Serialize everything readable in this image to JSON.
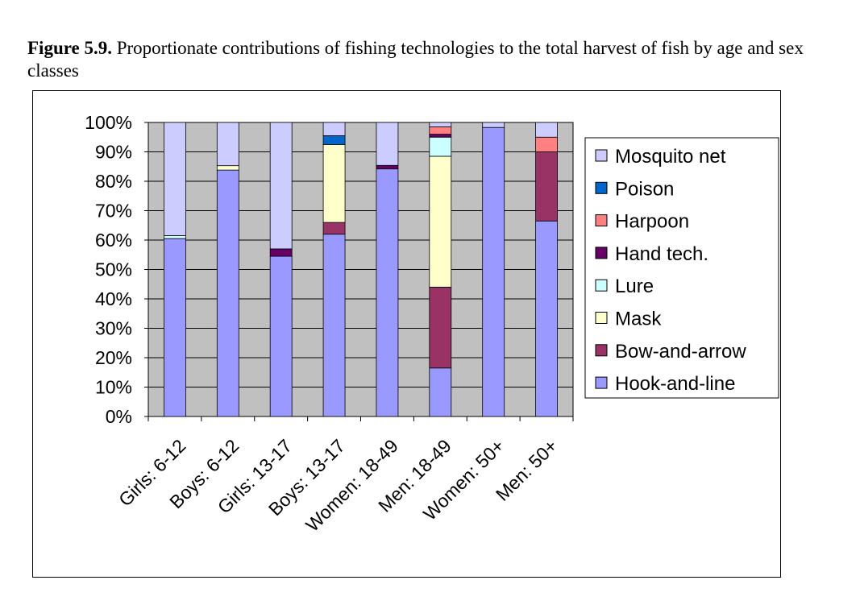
{
  "caption": {
    "label": "Figure 5.9.",
    "text": " Proportionate contributions of fishing technologies to the total harvest of fish by age and sex classes"
  },
  "chart_data": {
    "type": "bar",
    "stacked": true,
    "title": "",
    "xlabel": "",
    "ylabel": "",
    "ylim": [
      0,
      100
    ],
    "yticks": [
      "0%",
      "10%",
      "20%",
      "30%",
      "40%",
      "50%",
      "60%",
      "70%",
      "80%",
      "90%",
      "100%"
    ],
    "grid": true,
    "legend_position": "right",
    "plot_background": "#c0c0c0",
    "categories": [
      "Girls: 6-12",
      "Boys: 6-12",
      "Girls: 13-17",
      "Boys: 13-17",
      "Women: 18-49",
      "Men: 18-49",
      "Women: 50+",
      "Men: 50+"
    ],
    "series": [
      {
        "name": "Hook-and-line",
        "color": "#9999ff",
        "values": [
          60.5,
          83.8,
          54.5,
          62,
          84.2,
          16.5,
          98.3,
          66.5
        ]
      },
      {
        "name": "Bow-and-arrow",
        "color": "#993366",
        "values": [
          0,
          0,
          0,
          4,
          0,
          27.5,
          0,
          23.5
        ]
      },
      {
        "name": "Mask",
        "color": "#ffffcc",
        "values": [
          0,
          1.5,
          0,
          26.5,
          0,
          44.5,
          0,
          0
        ]
      },
      {
        "name": "Lure",
        "color": "#ccffff",
        "values": [
          1,
          0,
          0,
          0,
          0,
          6.5,
          0,
          0
        ]
      },
      {
        "name": "Hand tech.",
        "color": "#660066",
        "values": [
          0,
          0,
          2.5,
          0,
          1.2,
          1,
          0,
          0
        ]
      },
      {
        "name": "Harpoon",
        "color": "#ff8080",
        "values": [
          0,
          0,
          0,
          0,
          0,
          2.5,
          0,
          5
        ]
      },
      {
        "name": "Poison",
        "color": "#0066cc",
        "values": [
          0,
          0,
          0,
          3,
          0,
          0,
          0,
          0
        ]
      },
      {
        "name": "Mosquito net",
        "color": "#ccccff",
        "values": [
          38.5,
          14.7,
          43,
          4.5,
          14.6,
          1.5,
          1.7,
          5
        ]
      }
    ]
  }
}
